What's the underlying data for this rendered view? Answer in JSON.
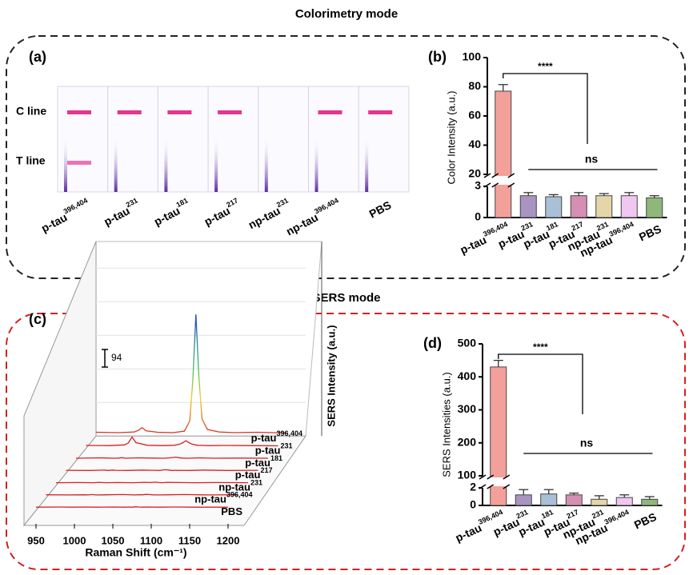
{
  "headings": [
    "Colorimetry mode",
    "SERS mode"
  ],
  "strip_panel": {
    "label": "(a)",
    "line_labels": [
      "C line",
      "T line"
    ],
    "strips": [
      "p-tau",
      "p-tau",
      "p-tau",
      "p-tau",
      "np-tau",
      "np-tau",
      "PBS"
    ],
    "strip_sup": [
      "396,404",
      "231",
      "181",
      "217",
      "231",
      "396,404",
      null
    ]
  },
  "chart_data": [
    {
      "type": "bar",
      "panel": "(b)",
      "ylabel": "Color Intensity (a.u.)",
      "categories": [
        "p-tau",
        "p-tau",
        "p-tau",
        "p-tau",
        "np-tau",
        "np-tau",
        "PBS"
      ],
      "category_sup": [
        "396,404",
        "231",
        "181",
        "217",
        "231",
        "396,404",
        null
      ],
      "values": [
        77,
        2.1,
        2.0,
        2.1,
        2.1,
        2.1,
        1.9
      ],
      "errors": [
        4.5,
        0.3,
        0.2,
        0.3,
        0.2,
        0.3,
        0.2
      ],
      "colors": [
        "#f4a09a",
        "#a993c0",
        "#a9c0d6",
        "#d48fb2",
        "#e5d6a8",
        "#f0c7f0",
        "#8fb77a"
      ],
      "ylim": [
        0,
        100
      ],
      "axis_break": [
        3,
        20
      ],
      "yticks": [
        0,
        3,
        20,
        40,
        60,
        80,
        100
      ],
      "annotations": [
        "****",
        "ns"
      ]
    },
    {
      "type": "line",
      "panel": "(c)",
      "xlabel": "Raman Shift (cm⁻¹)",
      "ylabel": "SERS Intensity (a.u.)",
      "scale_bar": 94,
      "xlim": [
        950,
        1200
      ],
      "xticks": [
        950,
        1000,
        1050,
        1100,
        1150,
        1200
      ],
      "x": [
        950,
        980,
        1000,
        1005,
        1010,
        1015,
        1030,
        1050,
        1065,
        1072,
        1076,
        1080,
        1084,
        1088,
        1095,
        1110,
        1130,
        1160,
        1200
      ],
      "series": [
        {
          "name": "p-tau",
          "sup": "396,404",
          "values": [
            20,
            18,
            22,
            30,
            45,
            28,
            20,
            18,
            26,
            80,
            300,
            650,
            310,
            90,
            35,
            22,
            18,
            20,
            16
          ]
        },
        {
          "name": "p-tau",
          "sup": "231",
          "values": [
            15,
            14,
            18,
            28,
            60,
            30,
            16,
            14,
            16,
            22,
            30,
            40,
            30,
            22,
            16,
            14,
            15,
            14,
            13
          ]
        },
        {
          "name": "p-tau",
          "sup": "181",
          "values": [
            12,
            14,
            12,
            13,
            15,
            12,
            14,
            13,
            12,
            14,
            16,
            18,
            15,
            13,
            12,
            14,
            12,
            13,
            12
          ]
        },
        {
          "name": "p-tau",
          "sup": "217",
          "values": [
            13,
            12,
            14,
            12,
            14,
            13,
            12,
            14,
            13,
            12,
            15,
            16,
            14,
            12,
            13,
            12,
            14,
            12,
            13
          ]
        },
        {
          "name": "np-tau",
          "sup": "231",
          "values": [
            12,
            13,
            12,
            14,
            13,
            12,
            13,
            12,
            14,
            13,
            14,
            15,
            13,
            12,
            14,
            13,
            12,
            13,
            12
          ]
        },
        {
          "name": "np-tau",
          "sup": "396,404",
          "values": [
            13,
            12,
            13,
            12,
            14,
            12,
            13,
            14,
            12,
            13,
            13,
            15,
            14,
            13,
            12,
            13,
            14,
            12,
            13
          ]
        },
        {
          "name": "PBS",
          "sup": null,
          "values": [
            12,
            13,
            12,
            13,
            12,
            13,
            12,
            13,
            12,
            13,
            12,
            14,
            13,
            12,
            13,
            12,
            13,
            12,
            12
          ]
        }
      ]
    },
    {
      "type": "bar",
      "panel": "(d)",
      "ylabel": "SERS Intensities (a.u.)",
      "categories": [
        "p-tau",
        "p-tau",
        "p-tau",
        "p-tau",
        "np-tau",
        "np-tau",
        "PBS"
      ],
      "category_sup": [
        "396,404",
        "231",
        "181",
        "217",
        "231",
        "396,404",
        null
      ],
      "values": [
        430,
        1.2,
        1.3,
        1.2,
        0.7,
        0.9,
        0.7
      ],
      "errors": [
        20,
        0.6,
        0.5,
        0.2,
        0.4,
        0.3,
        0.3
      ],
      "colors": [
        "#f4a09a",
        "#a993c0",
        "#a9c0d6",
        "#d48fb2",
        "#e5d6a8",
        "#f0c7f0",
        "#8fb77a"
      ],
      "ylim": [
        0,
        500
      ],
      "axis_break": [
        2,
        100
      ],
      "yticks": [
        0,
        2,
        100,
        200,
        300,
        400,
        500
      ],
      "annotations": [
        "****",
        "ns"
      ]
    }
  ]
}
